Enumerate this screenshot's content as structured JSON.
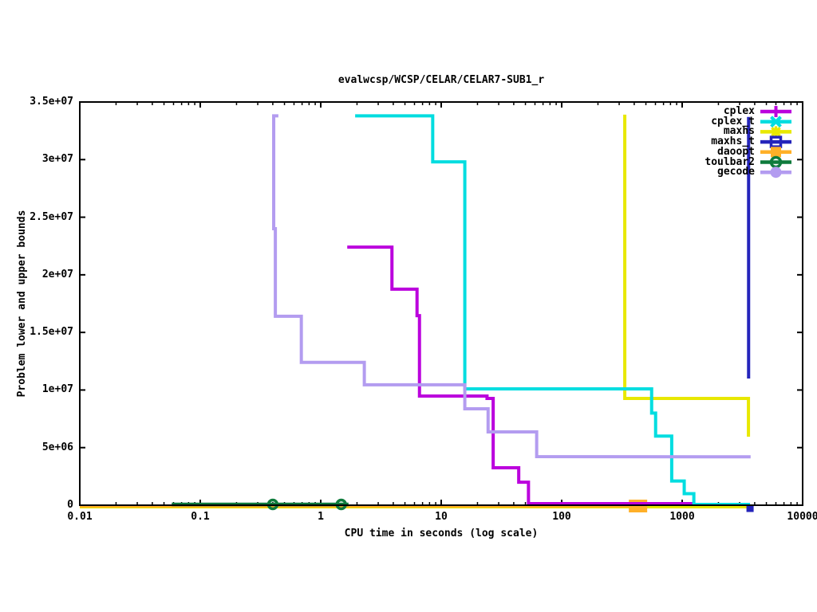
{
  "page": {
    "background": "#ffffff",
    "text_color": "#000000"
  },
  "chart_data": {
    "type": "line",
    "title": "evalwcsp/WCSP/CELAR/CELAR7-SUB1_r",
    "xlabel": "CPU time in seconds (log scale)",
    "ylabel": "Problem lower and upper bounds",
    "x_scale": "log",
    "xlim": [
      0.01,
      10000
    ],
    "ylim": [
      0,
      35000000
    ],
    "grid": false,
    "legend_position": "top-right-inside",
    "x_ticks": [
      {
        "v": 0.01,
        "label": "0.01"
      },
      {
        "v": 0.1,
        "label": "0.1"
      },
      {
        "v": 1,
        "label": "1"
      },
      {
        "v": 10,
        "label": "10"
      },
      {
        "v": 100,
        "label": "100"
      },
      {
        "v": 1000,
        "label": "1000"
      },
      {
        "v": 10000,
        "label": "10000"
      }
    ],
    "y_ticks": [
      {
        "v": 0,
        "label": "0"
      },
      {
        "v": 5000000,
        "label": "5e+06"
      },
      {
        "v": 10000000,
        "label": "1e+07"
      },
      {
        "v": 15000000,
        "label": "1.5e+07"
      },
      {
        "v": 20000000,
        "label": "2e+07"
      },
      {
        "v": 25000000,
        "label": "2.5e+07"
      },
      {
        "v": 30000000,
        "label": "3e+07"
      },
      {
        "v": 35000000,
        "label": "3.5e+07"
      }
    ],
    "series": [
      {
        "name": "cplex",
        "color": "#bb00dd",
        "marker": "plus",
        "z": 5,
        "segments": [
          {
            "points": [
              [
                1.66,
                22400000
              ],
              [
                3.9,
                22400000
              ],
              [
                3.9,
                18750000
              ],
              [
                6.3,
                18750000
              ],
              [
                6.3,
                16450000
              ],
              [
                6.6,
                16450000
              ],
              [
                6.6,
                9480000
              ],
              [
                24,
                9480000
              ],
              [
                24,
                9270000
              ],
              [
                27,
                9270000
              ],
              [
                27,
                3250000
              ],
              [
                44,
                3250000
              ],
              [
                44,
                2000000
              ],
              [
                53,
                2000000
              ],
              [
                53,
                140000
              ],
              [
                1220,
                140000
              ]
            ]
          }
        ],
        "markers": []
      },
      {
        "name": "cplex_t",
        "color": "#00dde0",
        "marker": "cross",
        "z": 6,
        "segments": [
          {
            "points": [
              [
                1.93,
                33800000
              ],
              [
                8.5,
                33800000
              ],
              [
                8.5,
                29800000
              ],
              [
                15.7,
                29800000
              ],
              [
                15.7,
                10100000
              ],
              [
                558,
                10100000
              ],
              [
                558,
                8000000
              ],
              [
                602,
                8000000
              ],
              [
                602,
                6000000
              ],
              [
                819,
                6000000
              ],
              [
                819,
                2100000
              ],
              [
                1040,
                2100000
              ],
              [
                1040,
                1000000
              ],
              [
                1250,
                1000000
              ],
              [
                1250,
                70000
              ],
              [
                3660,
                70000
              ]
            ]
          }
        ],
        "markers": []
      },
      {
        "name": "maxhs",
        "color": "#e8e800",
        "marker": "asterisk",
        "z": 1,
        "segments": [
          {
            "points": [
              [
                334,
                33900000
              ],
              [
                334,
                9270000
              ],
              [
                3550,
                9270000
              ],
              [
                3550,
                5950000
              ]
            ]
          },
          {
            "points": [
              [
                0.01,
                0
              ],
              [
                3660,
                0
              ]
            ],
            "dy": 2
          }
        ],
        "markers": []
      },
      {
        "name": "maxhs_t",
        "color": "#2424bb",
        "marker": "square-open",
        "z": 2,
        "segments": [
          {
            "points": [
              [
                3560,
                33700000
              ],
              [
                3560,
                11000000
              ]
            ]
          }
        ],
        "markers": [
          {
            "t": 3660,
            "v": 0,
            "dy": 4,
            "type": "square-filled",
            "w": 9,
            "h": 9
          }
        ]
      },
      {
        "name": "daoopt",
        "color": "#ffb028",
        "marker": "square-filled",
        "z": 3,
        "segments": [
          {
            "points": [
              [
                0.01,
                0
              ],
              [
                430,
                0
              ]
            ],
            "dy": 1
          }
        ],
        "markers": [
          {
            "t": 430,
            "v": 0,
            "dy": 1,
            "type": "square-filled",
            "w": 23,
            "h": 16
          }
        ]
      },
      {
        "name": "toulbar2",
        "color": "#0e7b3c",
        "marker": "circle-open",
        "z": 4,
        "segments": [
          {
            "points": [
              [
                0.058,
                0
              ],
              [
                1.7,
                0
              ]
            ],
            "dy": -1,
            "lw": 4.5
          }
        ],
        "markers": [
          {
            "t": 0.4,
            "v": 0,
            "dy": -1,
            "type": "circle-open",
            "r": 5.5
          },
          {
            "t": 1.48,
            "v": 0,
            "dy": -1,
            "type": "circle-open",
            "r": 5.5
          }
        ]
      },
      {
        "name": "gecode",
        "color": "#b39cf0",
        "marker": "circle-filled",
        "z": 7,
        "segments": [
          {
            "points": [
              [
                0.445,
                33800000
              ],
              [
                0.407,
                33800000
              ],
              [
                0.407,
                24000000
              ],
              [
                0.42,
                24000000
              ],
              [
                0.42,
                16400000
              ],
              [
                0.69,
                16400000
              ],
              [
                0.69,
                12400000
              ],
              [
                2.3,
                12400000
              ],
              [
                2.3,
                10450000
              ],
              [
                15.7,
                10450000
              ],
              [
                15.7,
                8370000
              ],
              [
                24.5,
                8370000
              ],
              [
                24.5,
                6360000
              ],
              [
                62,
                6360000
              ],
              [
                62,
                4220000
              ],
              [
                3700,
                4200000
              ]
            ]
          }
        ],
        "markers": []
      }
    ]
  }
}
